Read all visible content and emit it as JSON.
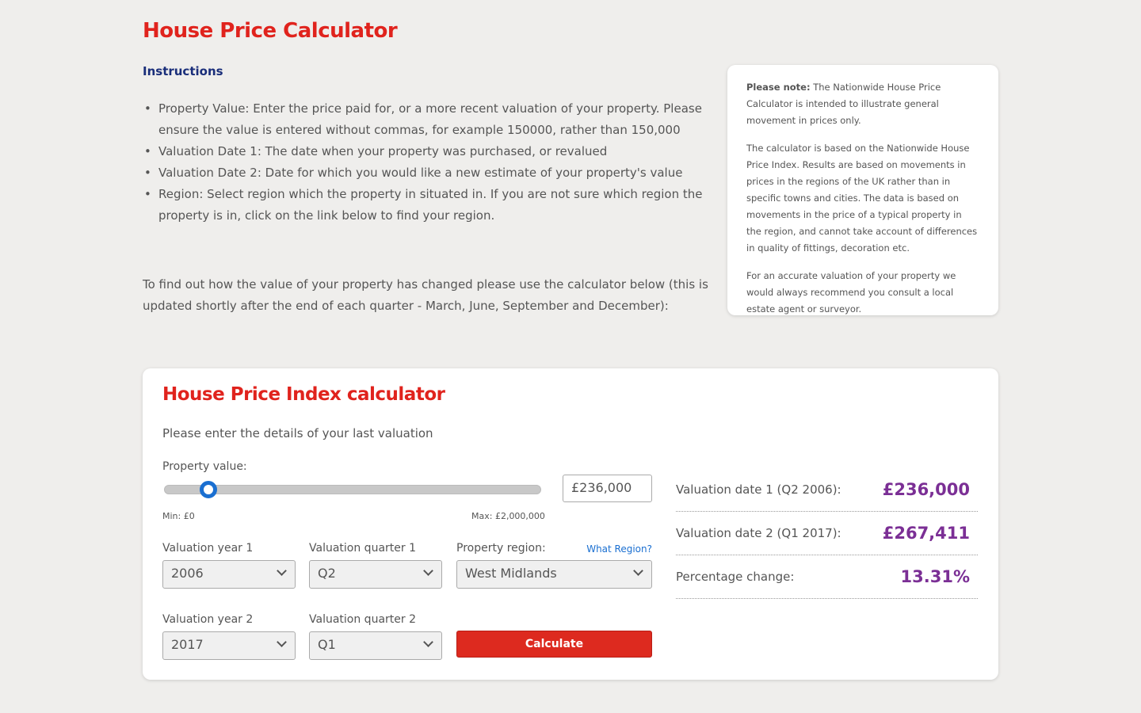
{
  "title": "House Price Calculator",
  "instructions": {
    "heading": "Instructions",
    "items": [
      "Property Value: Enter the price paid for, or a more recent valuation of your property. Please ensure the value is entered without commas, for example 150000, rather than 150,000",
      "Valuation Date 1: The date when your property was purchased, or revalued",
      "Valuation Date 2: Date for which you would like a new estimate of your property's value",
      "Region: Select region which the property in situated in. If you are not sure which region the property is in, click on the link below to find your region."
    ],
    "paragraph": "To find out how the value of your property has changed please use the calculator below (this is updated shortly after the end of each quarter - March, June, September and December):"
  },
  "note": {
    "bold": "Please note:",
    "p1": " The Nationwide House Price Calculator is intended to illustrate general movement in prices only.",
    "p2": "The calculator is based on the Nationwide House Price Index. Results are based on movements in prices in the regions of the UK rather than in specific towns and cities. The data is based on movements in the price of a typical property in the region, and cannot take account of differences in quality of fittings, decoration etc.",
    "p3": "For an accurate valuation of your property we would always recommend you consult a local estate agent or surveyor."
  },
  "calculator": {
    "title": "House Price Index calculator",
    "subtitle": "Please enter the details of your last valuation",
    "property_value_label": "Property value:",
    "slider_fraction": 0.118,
    "property_value": "£236,000",
    "min_label": "Min: £0",
    "max_label": "Max: £2,000,000",
    "year1_label": "Valuation year 1",
    "year1": "2006",
    "quarter1_label": "Valuation quarter 1",
    "quarter1": "Q2",
    "region_label": "Property region:",
    "region_link": "What Region?",
    "region": "West Midlands",
    "year2_label": "Valuation year 2",
    "year2": "2017",
    "quarter2_label": "Valuation quarter 2",
    "quarter2": "Q1",
    "calculate": "Calculate",
    "results": [
      {
        "label": "Valuation date 1 (Q2 2006):",
        "value": "£236,000"
      },
      {
        "label": "Valuation date 2 (Q1 2017):",
        "value": "£267,411"
      },
      {
        "label": "Percentage change:",
        "value": "13.31%"
      }
    ],
    "colors": {
      "accent_red": "#e0231d",
      "result_purple": "#7b2f95",
      "link_blue": "#1a6fd1"
    }
  }
}
